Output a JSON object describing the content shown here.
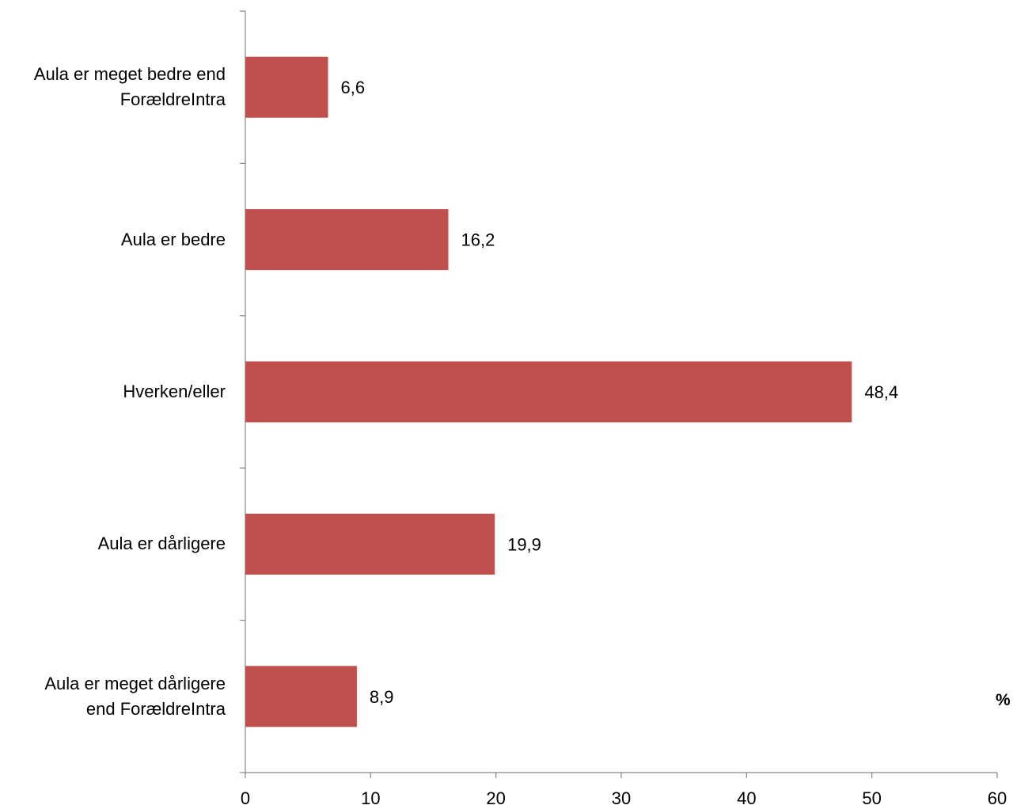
{
  "chart_data": {
    "type": "bar",
    "orientation": "horizontal",
    "categories": [
      [
        "Aula er meget bedre end",
        "ForældreIntra"
      ],
      [
        "Aula er bedre"
      ],
      [
        "Hverken/eller"
      ],
      [
        "Aula er dårligere"
      ],
      [
        "Aula er meget dårligere",
        "end ForældreIntra"
      ]
    ],
    "values": [
      6.6,
      16.2,
      48.4,
      19.9,
      8.9
    ],
    "value_labels": [
      "6,6",
      "16,2",
      "48,4",
      "19,9",
      "8,9"
    ],
    "xlim": [
      0,
      60
    ],
    "xticks": [
      0,
      10,
      20,
      30,
      40,
      50,
      60
    ],
    "unit_label": "%",
    "bar_color": "#c0504d",
    "grid": false,
    "legend": "none"
  }
}
